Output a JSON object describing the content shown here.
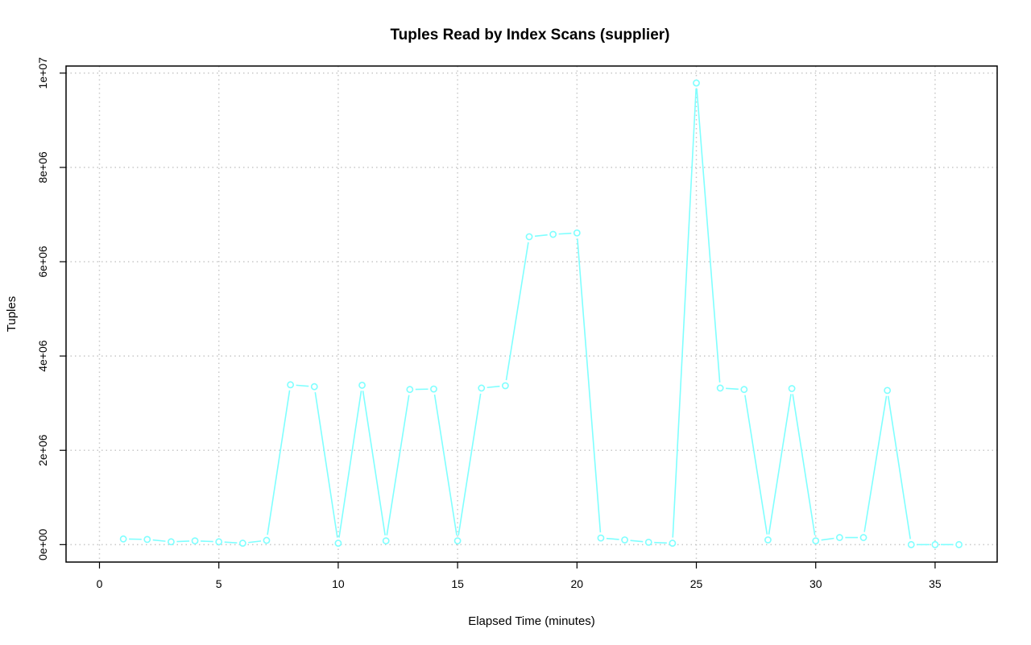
{
  "chart_data": {
    "type": "line",
    "title": "Tuples Read by Index Scans (supplier)",
    "xlabel": "Elapsed Time (minutes)",
    "ylabel": "Tuples",
    "xlim": [
      -1.4,
      37.6
    ],
    "ylim": [
      -370000,
      10150000
    ],
    "x_ticks": [
      0,
      5,
      10,
      15,
      20,
      25,
      30,
      35
    ],
    "x_tick_labels": [
      "0",
      "5",
      "10",
      "15",
      "20",
      "25",
      "30",
      "35"
    ],
    "y_ticks": [
      0,
      2000000,
      4000000,
      6000000,
      8000000,
      10000000
    ],
    "y_tick_labels": [
      "0e+00",
      "2e+06",
      "4e+06",
      "6e+06",
      "8e+06",
      "1e+07"
    ],
    "grid": true,
    "line_color": "#7FFFFF",
    "series": [
      {
        "x": [
          1,
          2,
          3,
          4,
          5,
          6,
          7,
          8,
          9,
          10,
          11,
          12,
          13,
          14,
          15,
          16,
          17,
          18,
          19,
          20,
          21,
          22,
          23,
          24,
          25,
          26,
          27,
          28,
          29,
          30,
          31,
          32,
          33,
          34,
          35,
          36
        ],
        "values": [
          120000,
          110000,
          60000,
          80000,
          60000,
          30000,
          90000,
          3390000,
          3350000,
          30000,
          3380000,
          80000,
          3290000,
          3300000,
          80000,
          3320000,
          3370000,
          6530000,
          6580000,
          6610000,
          140000,
          100000,
          50000,
          30000,
          9790000,
          3320000,
          3290000,
          100000,
          3310000,
          80000,
          150000,
          150000,
          3270000,
          0,
          0,
          0
        ]
      }
    ]
  }
}
